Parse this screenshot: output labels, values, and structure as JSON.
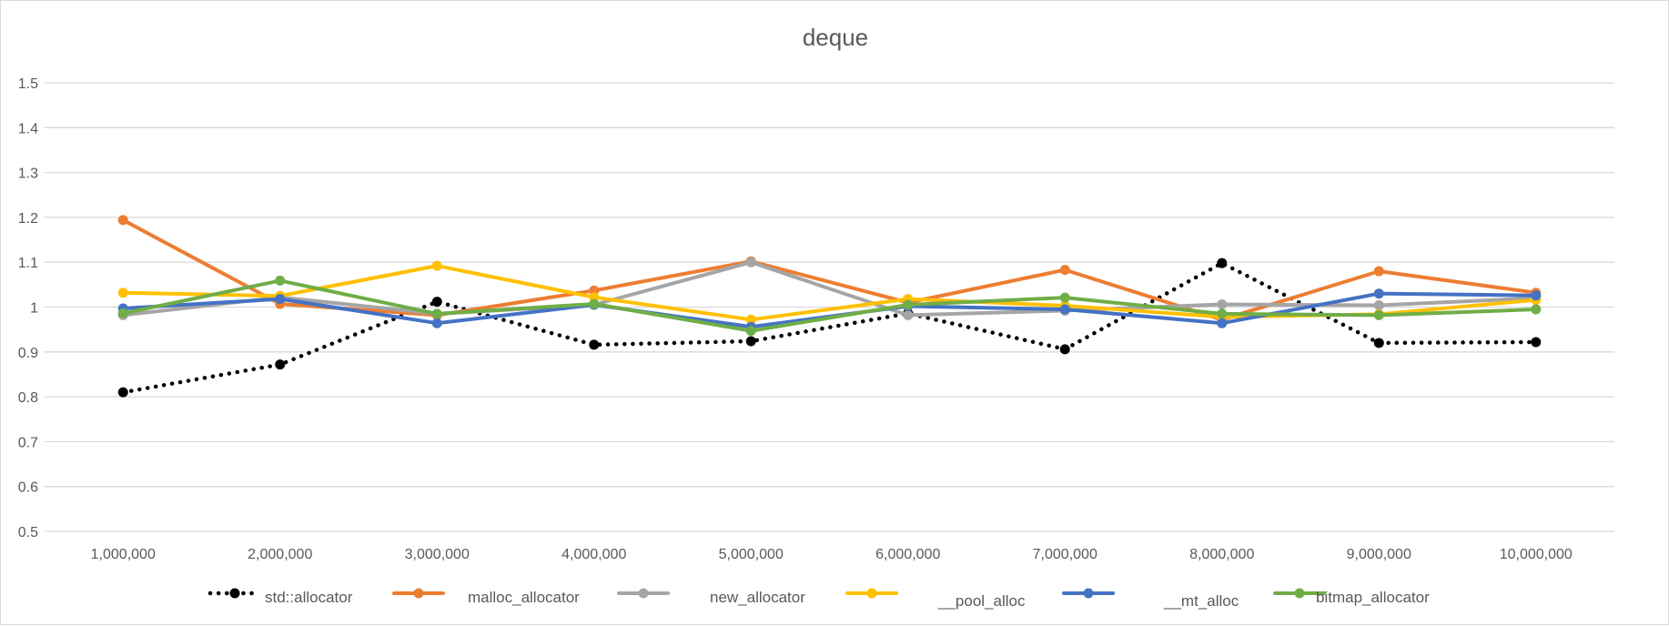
{
  "chart_data": {
    "type": "line",
    "title": "deque",
    "xlabel": "",
    "ylabel": "",
    "ylim": [
      0.5,
      1.5
    ],
    "yticks": [
      "0.5",
      "0.6",
      "0.7",
      "0.8",
      "0.9",
      "1",
      "1.1",
      "1.2",
      "1.3",
      "1.4",
      "1.5"
    ],
    "grid": true,
    "legend_position": "bottom",
    "categories": [
      "1,000,000",
      "2,000,000",
      "3,000,000",
      "4,000,000",
      "5,000,000",
      "6,000,000",
      "7,000,000",
      "8,000,000",
      "9,000,000",
      "10,000,000"
    ],
    "series": [
      {
        "name": "std::allocator",
        "color": "#000000",
        "dashed": true,
        "values": [
          0.81,
          0.872,
          1.012,
          0.916,
          0.924,
          0.986,
          0.906,
          1.098,
          0.92,
          0.922
        ]
      },
      {
        "name": "malloc_allocator",
        "color": "#ED7D31",
        "dashed": false,
        "values": [
          1.194,
          1.007,
          0.982,
          1.037,
          1.102,
          1.01,
          1.083,
          0.972,
          1.08,
          1.032
        ]
      },
      {
        "name": "new_allocator",
        "color": "#A5A5A5",
        "dashed": false,
        "values": [
          0.982,
          1.022,
          0.985,
          1.005,
          1.1,
          0.982,
          0.992,
          1.006,
          1.004,
          1.02
        ]
      },
      {
        "name": "__pool_alloc",
        "color": "#FFC000",
        "dashed": false,
        "values": [
          1.032,
          1.025,
          1.092,
          1.022,
          0.972,
          1.018,
          1.003,
          0.978,
          0.984,
          1.016
        ]
      },
      {
        "name": "__mt_alloc",
        "color": "#4472C4",
        "dashed": false,
        "values": [
          0.997,
          1.018,
          0.964,
          1.005,
          0.956,
          1.002,
          0.995,
          0.964,
          1.03,
          1.026
        ]
      },
      {
        "name": "bitmap_allocator",
        "color": "#70AD47",
        "dashed": false,
        "values": [
          0.986,
          1.059,
          0.985,
          1.007,
          0.947,
          1.005,
          1.021,
          0.985,
          0.982,
          0.995
        ]
      }
    ]
  }
}
